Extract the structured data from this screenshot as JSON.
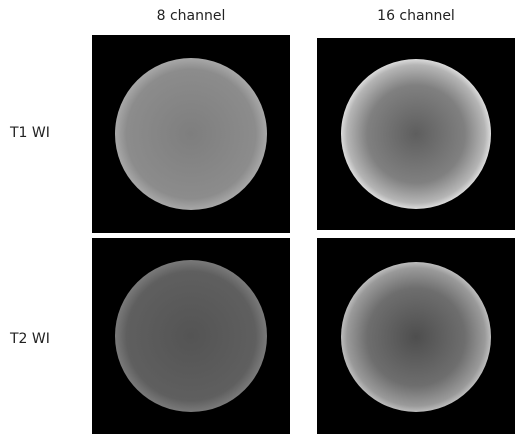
{
  "columns": [
    "8 channel",
    "16 channel"
  ],
  "rows": [
    "T1 WI",
    "T2 WI"
  ]
}
